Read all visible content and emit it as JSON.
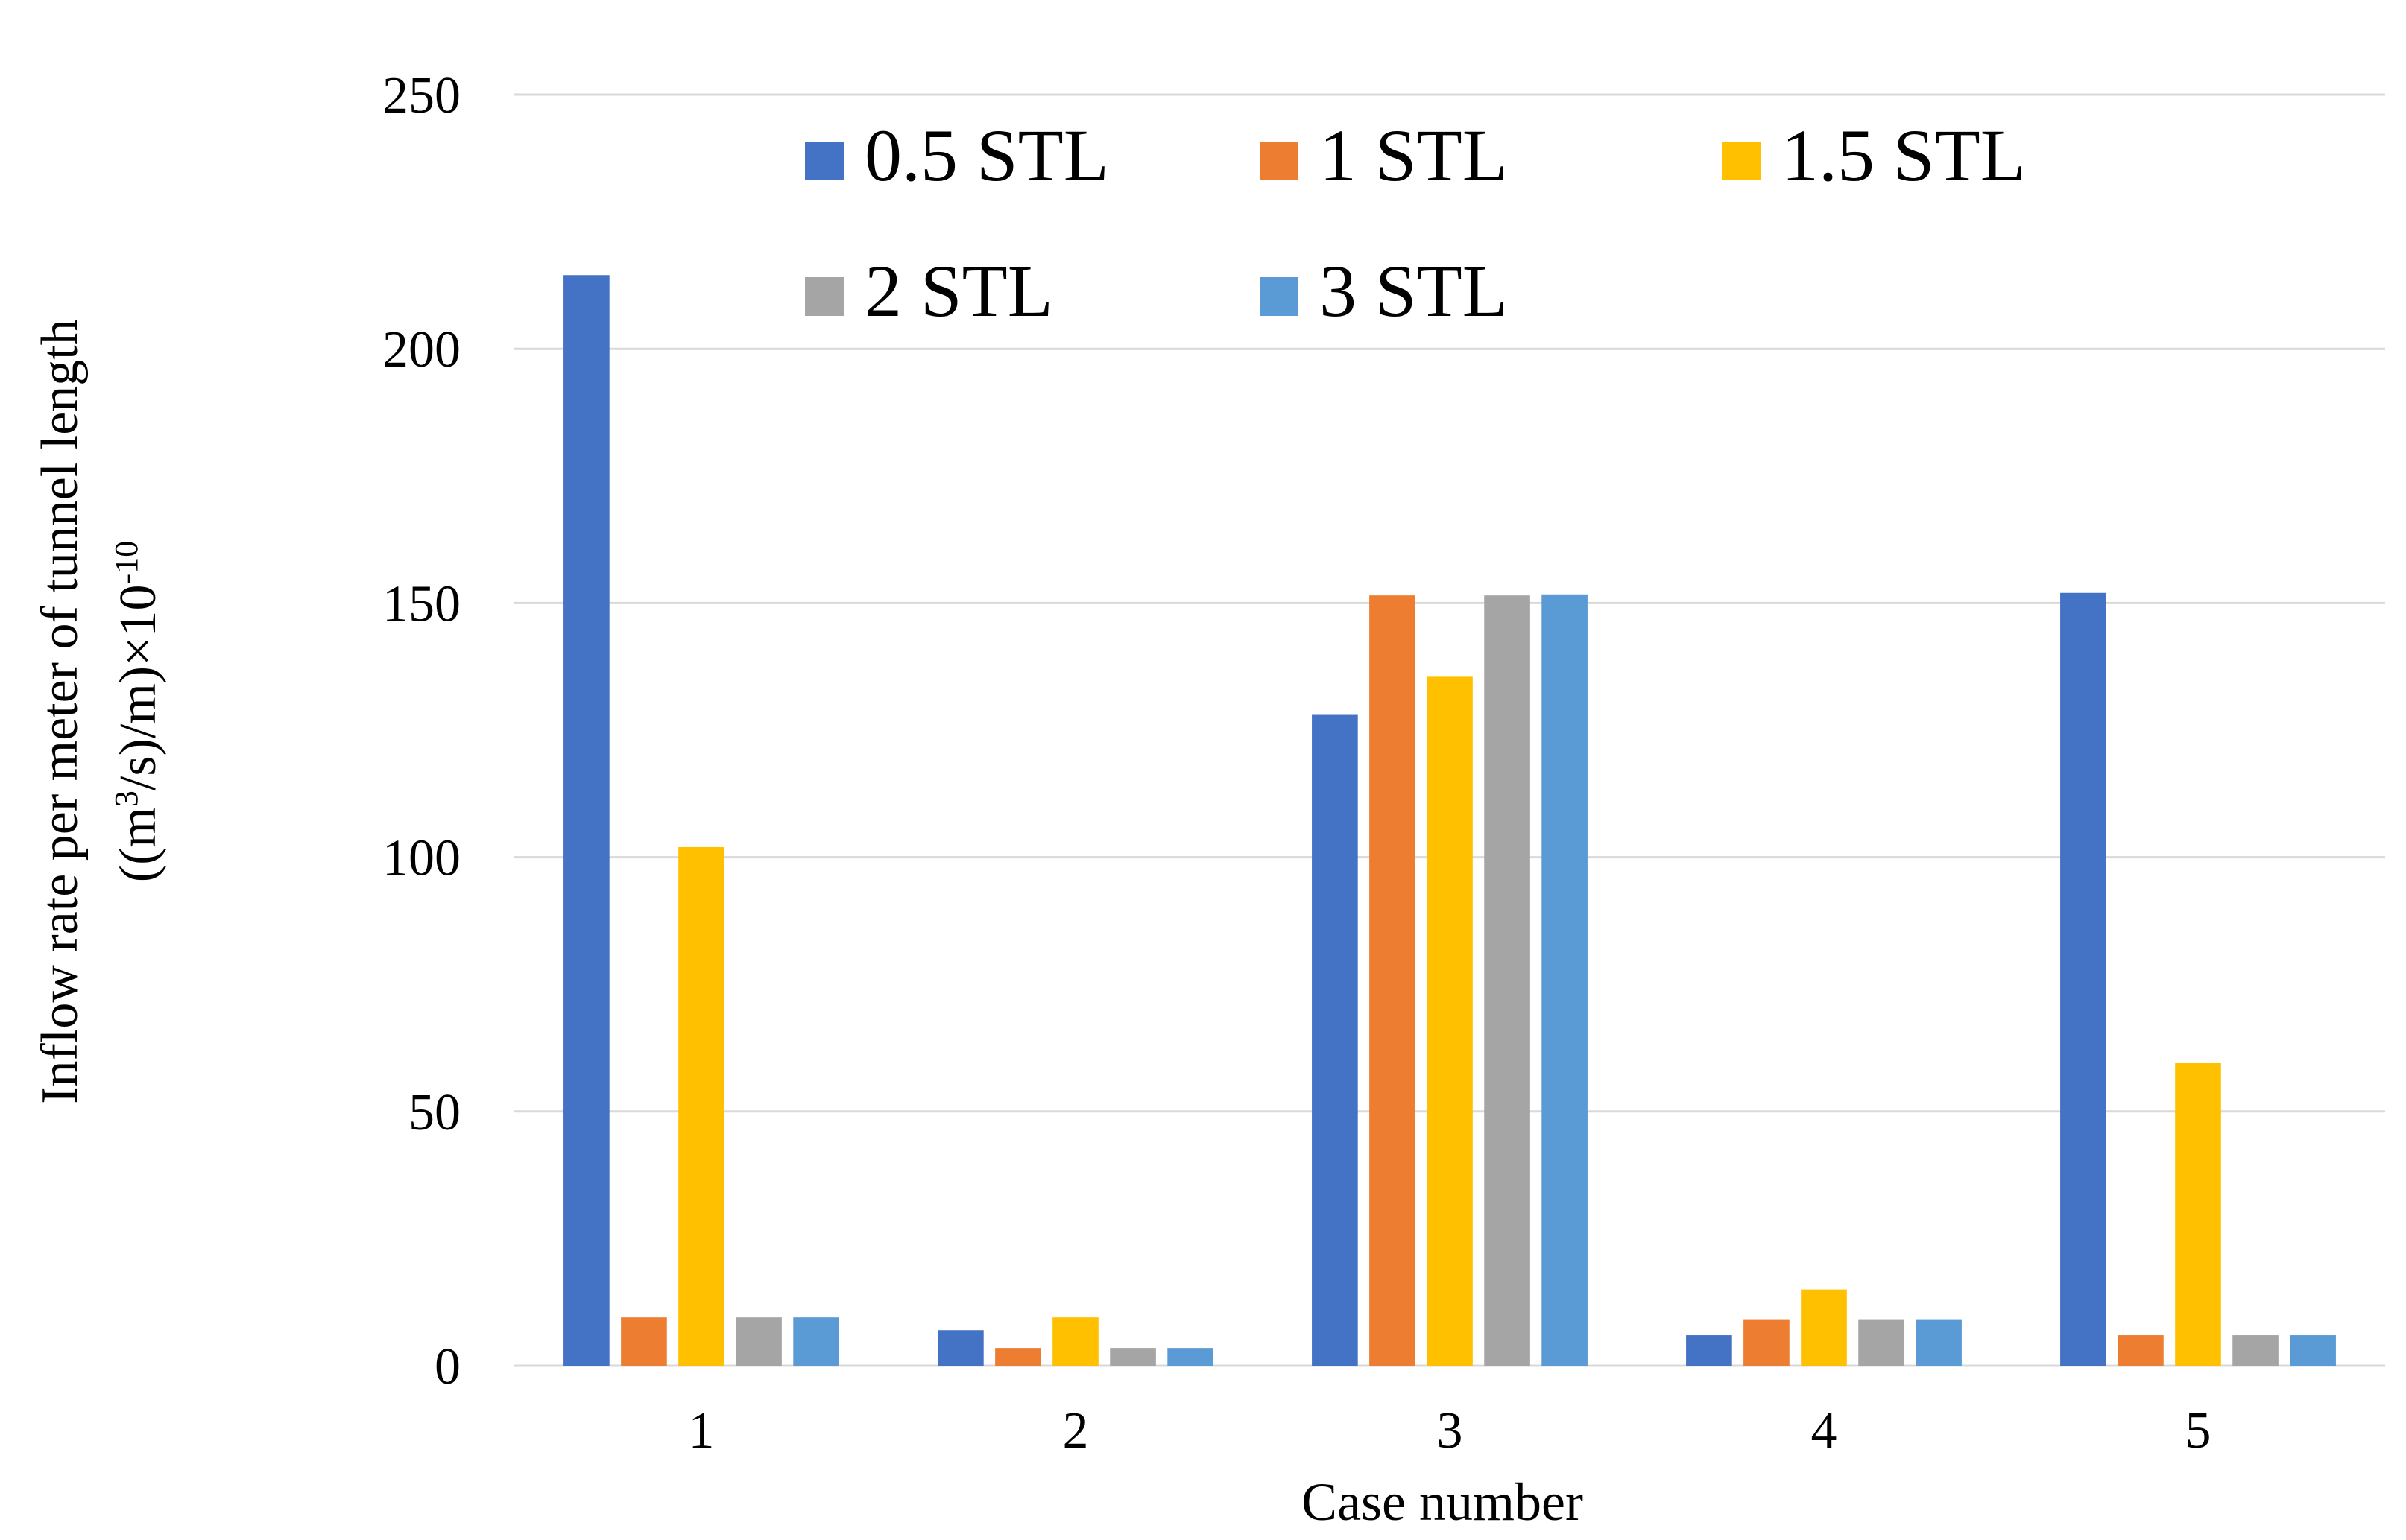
{
  "chart_data": {
    "type": "bar",
    "title": "",
    "xlabel": "Case number",
    "ylabel": {
      "line1": "Inflow rate per meter of tunnel length",
      "line2_prefix": "((m",
      "line2_sup1": "3",
      "line2_mid": "/s)/m)×10",
      "line2_sup2": "-10"
    },
    "ylim": [
      0,
      250
    ],
    "yticks": [
      0,
      50,
      100,
      150,
      200,
      250
    ],
    "grid": true,
    "legend_position": "top",
    "categories": [
      "1",
      "2",
      "3",
      "4",
      "5"
    ],
    "series": [
      {
        "name": "0.5 STL",
        "color": "#4472C4",
        "values": [
          214.5,
          7,
          128,
          6,
          152
        ]
      },
      {
        "name": "1 STL",
        "color": "#ED7D31",
        "values": [
          9.5,
          3.5,
          151.5,
          9,
          6
        ]
      },
      {
        "name": "1.5 STL",
        "color": "#FFC000",
        "values": [
          102,
          9.5,
          135.5,
          15,
          59.5
        ]
      },
      {
        "name": "2 STL",
        "color": "#A5A5A5",
        "values": [
          9.5,
          3.5,
          151.5,
          9,
          6
        ]
      },
      {
        "name": "3 STL",
        "color": "#5B9BD5",
        "values": [
          9.5,
          3.5,
          151.7,
          9,
          6
        ]
      }
    ]
  }
}
